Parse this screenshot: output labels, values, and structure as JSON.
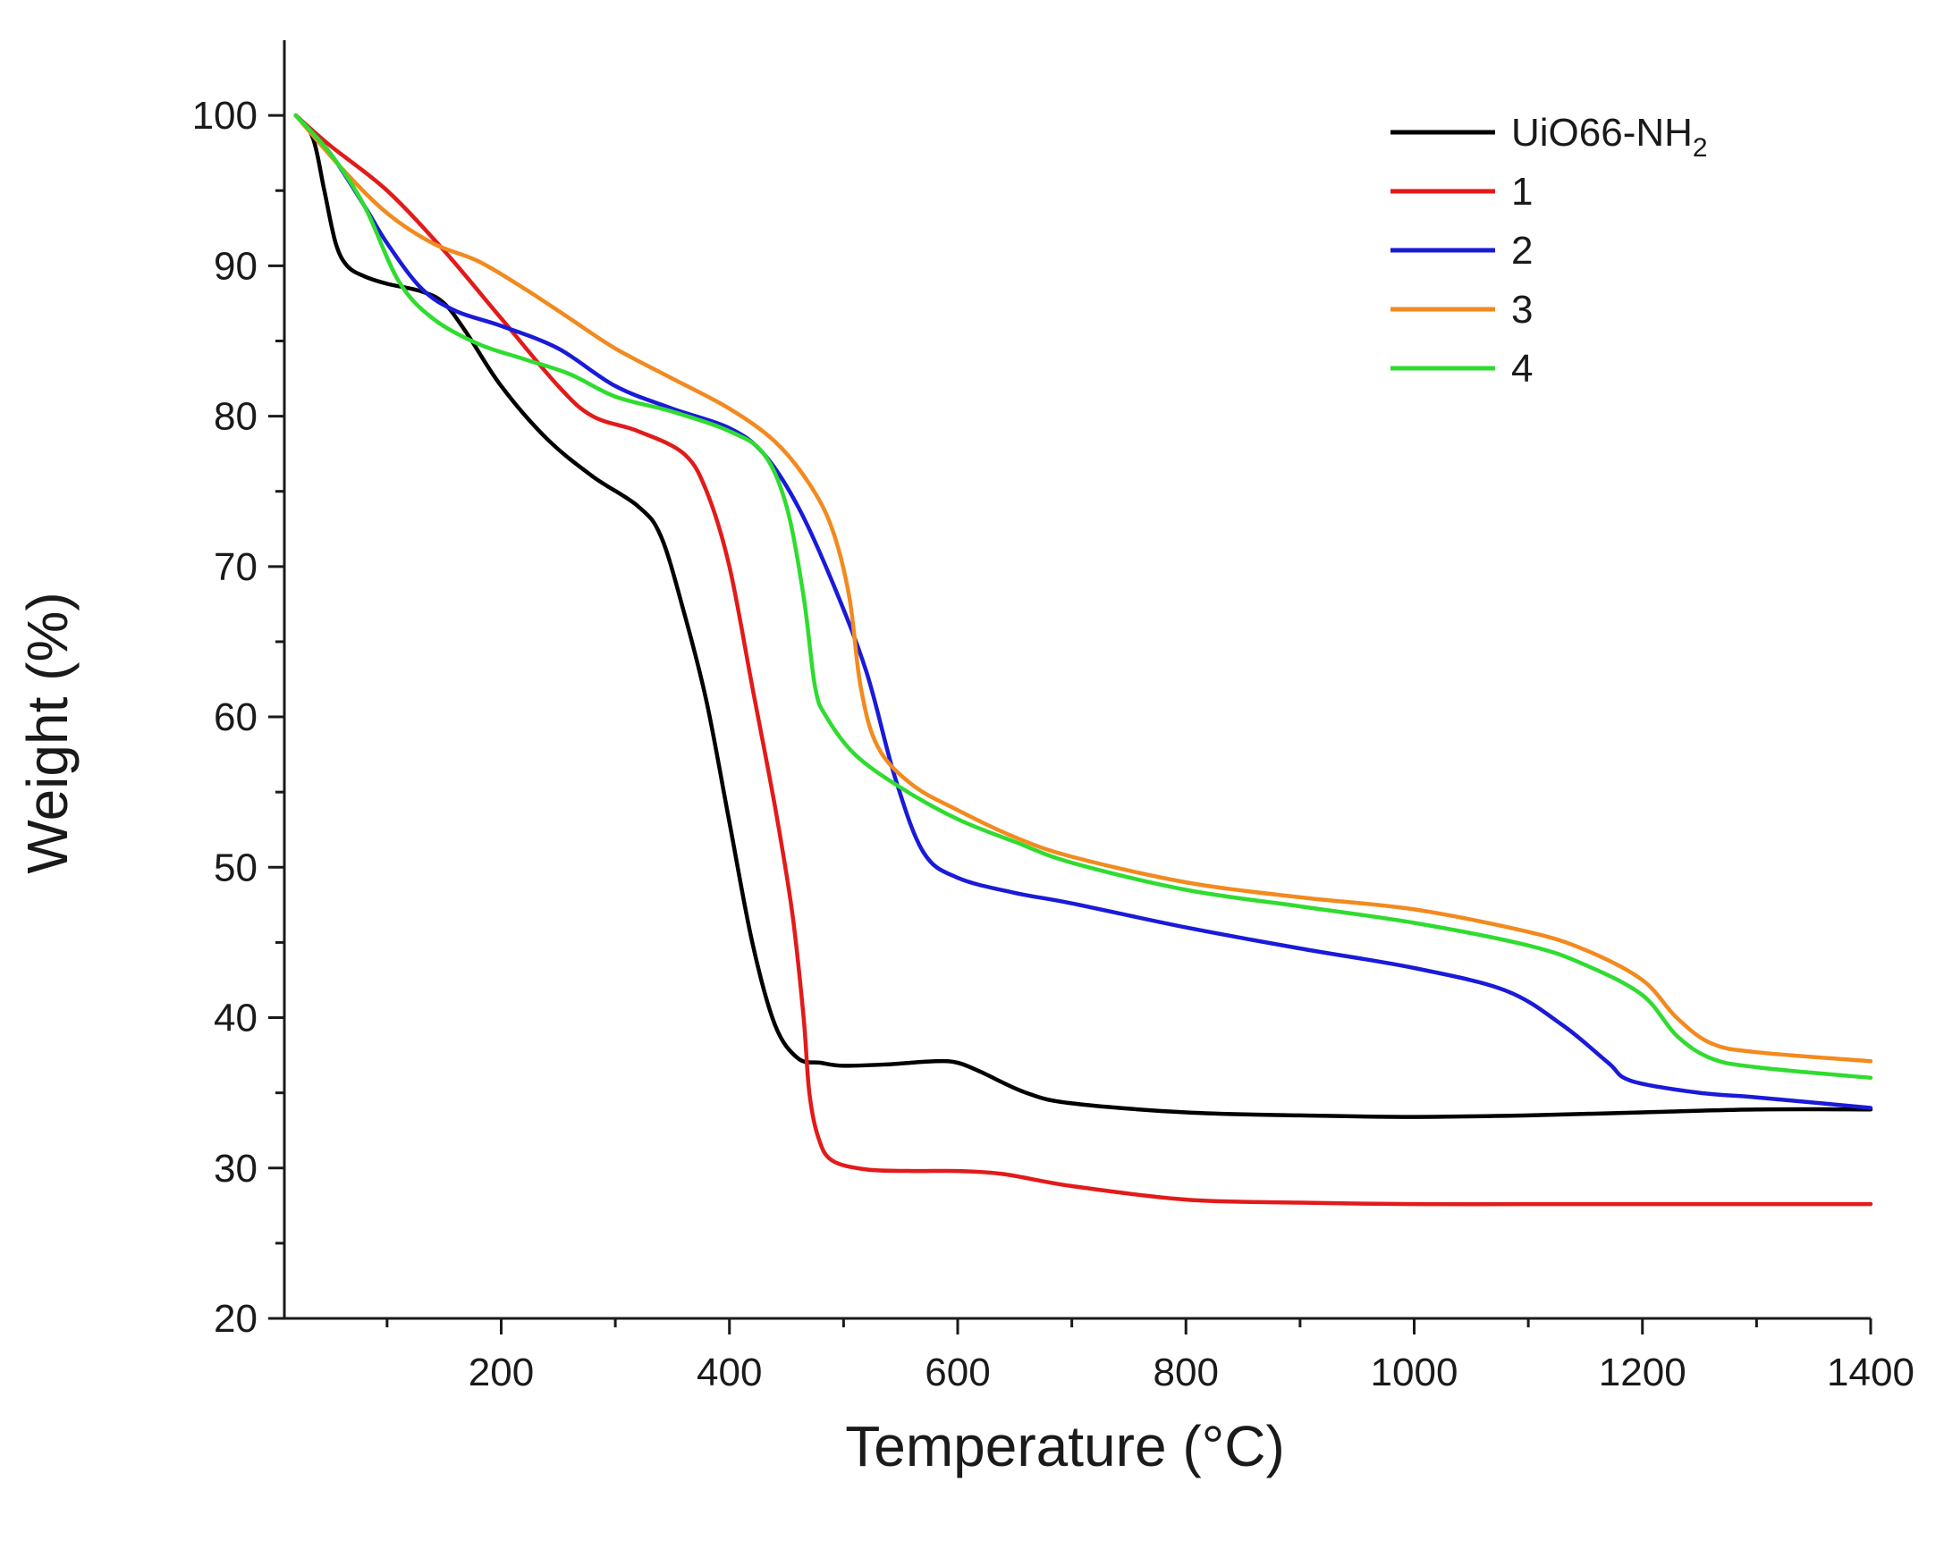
{
  "chart_data": {
    "type": "line",
    "title": "",
    "xlabel": "Temperature (°C)",
    "ylabel": "Weight (%)",
    "xlim": [
      10,
      1400
    ],
    "ylim": [
      20,
      105
    ],
    "x_ticks": [
      200,
      400,
      600,
      800,
      1000,
      1200,
      1400
    ],
    "y_ticks": [
      20,
      30,
      40,
      50,
      60,
      70,
      80,
      90,
      100
    ],
    "grid": false,
    "legend_position": "top-right",
    "series": [
      {
        "name": "UiO66-NH2",
        "label_main": "UiO66-NH",
        "label_sub": "2",
        "color": "#000000",
        "points": [
          [
            20,
            100
          ],
          [
            35,
            98.5
          ],
          [
            45,
            95
          ],
          [
            55,
            91.5
          ],
          [
            65,
            90
          ],
          [
            80,
            89.3
          ],
          [
            100,
            88.8
          ],
          [
            130,
            88.3
          ],
          [
            150,
            87.5
          ],
          [
            170,
            85.5
          ],
          [
            200,
            82
          ],
          [
            240,
            78.5
          ],
          [
            280,
            76
          ],
          [
            320,
            74
          ],
          [
            340,
            72
          ],
          [
            360,
            67
          ],
          [
            380,
            61
          ],
          [
            400,
            53
          ],
          [
            420,
            45
          ],
          [
            440,
            39.5
          ],
          [
            460,
            37.3
          ],
          [
            480,
            37
          ],
          [
            500,
            36.8
          ],
          [
            540,
            36.9
          ],
          [
            580,
            37.1
          ],
          [
            600,
            37
          ],
          [
            620,
            36.4
          ],
          [
            660,
            35
          ],
          [
            700,
            34.3
          ],
          [
            800,
            33.7
          ],
          [
            900,
            33.5
          ],
          [
            1000,
            33.4
          ],
          [
            1100,
            33.5
          ],
          [
            1200,
            33.7
          ],
          [
            1300,
            33.9
          ],
          [
            1400,
            33.9
          ]
        ]
      },
      {
        "name": "1",
        "label_main": "1",
        "label_sub": "",
        "color": "#e31a1a",
        "points": [
          [
            20,
            100
          ],
          [
            50,
            98
          ],
          [
            100,
            95
          ],
          [
            150,
            91
          ],
          [
            200,
            86.5
          ],
          [
            250,
            82
          ],
          [
            280,
            80
          ],
          [
            320,
            79
          ],
          [
            360,
            77.5
          ],
          [
            380,
            75
          ],
          [
            400,
            70
          ],
          [
            420,
            62
          ],
          [
            440,
            54
          ],
          [
            455,
            47
          ],
          [
            465,
            40
          ],
          [
            470,
            35
          ],
          [
            478,
            32
          ],
          [
            490,
            30.5
          ],
          [
            520,
            29.9
          ],
          [
            560,
            29.8
          ],
          [
            600,
            29.8
          ],
          [
            640,
            29.6
          ],
          [
            700,
            28.8
          ],
          [
            800,
            27.9
          ],
          [
            900,
            27.7
          ],
          [
            1000,
            27.6
          ],
          [
            1100,
            27.6
          ],
          [
            1200,
            27.6
          ],
          [
            1300,
            27.6
          ],
          [
            1400,
            27.6
          ]
        ]
      },
      {
        "name": "2",
        "label_main": "2",
        "label_sub": "",
        "color": "#1a1ad9",
        "points": [
          [
            20,
            100
          ],
          [
            50,
            97.5
          ],
          [
            80,
            94
          ],
          [
            100,
            91.5
          ],
          [
            130,
            88.5
          ],
          [
            160,
            87
          ],
          [
            200,
            86
          ],
          [
            250,
            84.5
          ],
          [
            300,
            82
          ],
          [
            350,
            80.5
          ],
          [
            400,
            79.2
          ],
          [
            430,
            77.5
          ],
          [
            460,
            74
          ],
          [
            490,
            69
          ],
          [
            520,
            63
          ],
          [
            545,
            56
          ],
          [
            570,
            51
          ],
          [
            600,
            49.3
          ],
          [
            650,
            48.3
          ],
          [
            700,
            47.6
          ],
          [
            800,
            46
          ],
          [
            900,
            44.6
          ],
          [
            1000,
            43.3
          ],
          [
            1080,
            41.8
          ],
          [
            1130,
            39.5
          ],
          [
            1170,
            37
          ],
          [
            1190,
            35.8
          ],
          [
            1250,
            35
          ],
          [
            1300,
            34.7
          ],
          [
            1400,
            34
          ]
        ]
      },
      {
        "name": "3",
        "label_main": "3",
        "label_sub": "",
        "color": "#f28a1e",
        "points": [
          [
            20,
            100
          ],
          [
            60,
            96.5
          ],
          [
            100,
            93.5
          ],
          [
            140,
            91.5
          ],
          [
            180,
            90.3
          ],
          [
            220,
            88.5
          ],
          [
            260,
            86.5
          ],
          [
            300,
            84.5
          ],
          [
            350,
            82.5
          ],
          [
            400,
            80.5
          ],
          [
            440,
            78.3
          ],
          [
            470,
            75.5
          ],
          [
            490,
            72.5
          ],
          [
            505,
            68
          ],
          [
            515,
            62
          ],
          [
            530,
            58
          ],
          [
            560,
            55.5
          ],
          [
            600,
            53.8
          ],
          [
            650,
            52
          ],
          [
            700,
            50.7
          ],
          [
            800,
            49
          ],
          [
            900,
            48
          ],
          [
            1000,
            47.2
          ],
          [
            1100,
            45.7
          ],
          [
            1150,
            44.5
          ],
          [
            1200,
            42.5
          ],
          [
            1230,
            40
          ],
          [
            1260,
            38.3
          ],
          [
            1300,
            37.7
          ],
          [
            1400,
            37.1
          ]
        ]
      },
      {
        "name": "4",
        "label_main": "4",
        "label_sub": "",
        "color": "#2fdc2f",
        "points": [
          [
            20,
            100
          ],
          [
            50,
            97.5
          ],
          [
            80,
            94
          ],
          [
            110,
            89
          ],
          [
            140,
            86.5
          ],
          [
            180,
            84.8
          ],
          [
            220,
            83.8
          ],
          [
            260,
            82.8
          ],
          [
            300,
            81.3
          ],
          [
            350,
            80.3
          ],
          [
            400,
            79
          ],
          [
            430,
            77.5
          ],
          [
            450,
            74
          ],
          [
            465,
            68
          ],
          [
            475,
            62
          ],
          [
            485,
            60
          ],
          [
            510,
            57.5
          ],
          [
            550,
            55.3
          ],
          [
            600,
            53.2
          ],
          [
            650,
            51.7
          ],
          [
            700,
            50.3
          ],
          [
            800,
            48.5
          ],
          [
            900,
            47.4
          ],
          [
            1000,
            46.3
          ],
          [
            1100,
            44.8
          ],
          [
            1150,
            43.5
          ],
          [
            1200,
            41.5
          ],
          [
            1230,
            38.8
          ],
          [
            1260,
            37.3
          ],
          [
            1300,
            36.7
          ],
          [
            1400,
            36
          ]
        ]
      }
    ]
  }
}
